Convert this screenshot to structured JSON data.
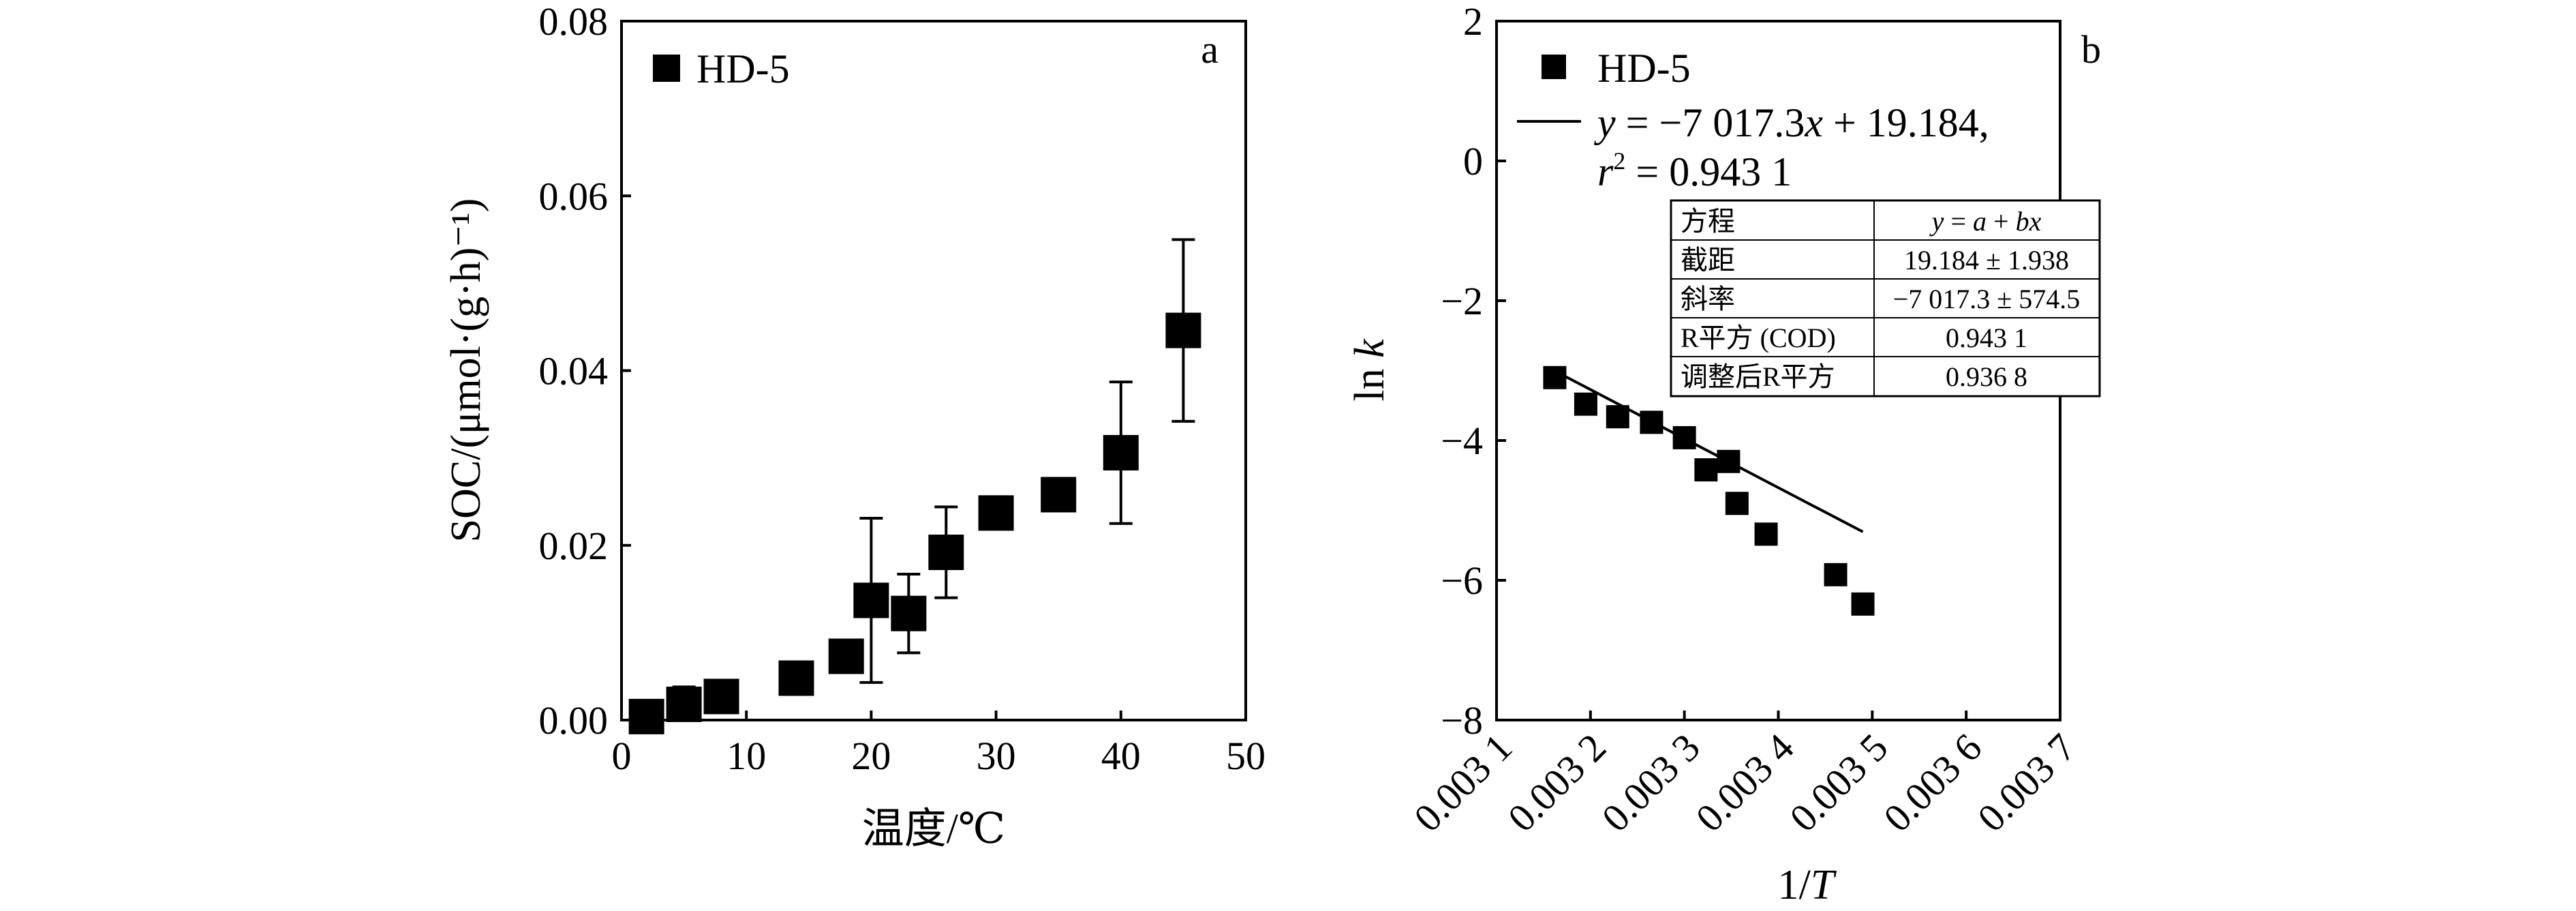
{
  "chart_data": [
    {
      "type": "scatter",
      "panel_label": "a",
      "xlabel": "温度/℃",
      "ylabel": "SOC/(μmol·(g·h)⁻¹)",
      "xlim": [
        0,
        50
      ],
      "ylim": [
        0,
        0.08
      ],
      "x_ticks": [
        0,
        10,
        20,
        30,
        40,
        50
      ],
      "x_tick_labels": [
        "0",
        "10",
        "20",
        "30",
        "40",
        "50"
      ],
      "y_ticks": [
        0,
        0.02,
        0.04,
        0.06,
        0.08
      ],
      "y_tick_labels": [
        "0.00",
        "0.02",
        "0.04",
        "0.06",
        "0.08"
      ],
      "grid": false,
      "legend_position": "top-left",
      "series": [
        {
          "name": "HD-5",
          "marker": "square",
          "color": "#000000",
          "points": [
            {
              "x": 2,
              "y": 0.0004,
              "err": 0
            },
            {
              "x": 5,
              "y": 0.0018,
              "err": 0.002
            },
            {
              "x": 8,
              "y": 0.0027,
              "err": 0
            },
            {
              "x": 14,
              "y": 0.0048,
              "err": 0
            },
            {
              "x": 18,
              "y": 0.0073,
              "err": 0
            },
            {
              "x": 20,
              "y": 0.0137,
              "err": 0.0094
            },
            {
              "x": 23,
              "y": 0.0122,
              "err": 0.0045
            },
            {
              "x": 26,
              "y": 0.0192,
              "err": 0.0052
            },
            {
              "x": 30,
              "y": 0.0237,
              "err": 0
            },
            {
              "x": 35,
              "y": 0.0258,
              "err": 0
            },
            {
              "x": 40,
              "y": 0.0306,
              "err": 0.0081
            },
            {
              "x": 45,
              "y": 0.0446,
              "err": 0.0104
            }
          ]
        }
      ]
    },
    {
      "type": "scatter",
      "panel_label": "b",
      "xlabel_prefix": "1/",
      "xlabel_var": "T",
      "ylabel_prefix": "ln ",
      "ylabel_var": "k",
      "xlim": [
        0.0031,
        0.0037
      ],
      "ylim": [
        -8,
        2
      ],
      "x_ticks": [
        0.0031,
        0.0032,
        0.0033,
        0.0034,
        0.0035,
        0.0036,
        0.0037
      ],
      "x_tick_labels": [
        "0.003 1",
        "0.003 2",
        "0.003 3",
        "0.003 4",
        "0.003 5",
        "0.003 6",
        "0.003 7"
      ],
      "y_ticks": [
        -8,
        -6,
        -4,
        -2,
        0,
        2
      ],
      "y_tick_labels": [
        "−8",
        "−6",
        "−4",
        "−2",
        "0",
        "2"
      ],
      "grid": false,
      "legend_position": "top-left",
      "series": [
        {
          "name": "HD-5",
          "marker": "square",
          "color": "#000000",
          "points": [
            {
              "x": 0.003162,
              "y": -3.1
            },
            {
              "x": 0.003195,
              "y": -3.48
            },
            {
              "x": 0.003229,
              "y": -3.66
            },
            {
              "x": 0.003265,
              "y": -3.74
            },
            {
              "x": 0.0033,
              "y": -3.96
            },
            {
              "x": 0.003323,
              "y": -4.42
            },
            {
              "x": 0.003347,
              "y": -4.3
            },
            {
              "x": 0.003356,
              "y": -4.9
            },
            {
              "x": 0.003387,
              "y": -5.34
            },
            {
              "x": 0.003461,
              "y": -5.92
            },
            {
              "x": 0.00349,
              "y": -6.34
            }
          ]
        }
      ],
      "fit_line": {
        "slope": -7017.3,
        "intercept": 19.184,
        "x_start": 0.003162,
        "x_end": 0.00349
      },
      "fit_legend": {
        "eq_y": "y",
        "eq_mid": " = −7 017.3",
        "eq_x": "x",
        "eq_end": " + 19.184,",
        "r_var": "r",
        "r_sup": "2",
        "r_val": " = 0.943 1"
      },
      "fit_table": {
        "rows": [
          {
            "label": "方程",
            "value_parts": [
              "y",
              " = ",
              "a",
              " + ",
              "bx"
            ],
            "value_italic": [
              true,
              false,
              true,
              false,
              true
            ]
          },
          {
            "label": "截距",
            "value": "19.184 ± 1.938"
          },
          {
            "label": "斜率",
            "value": "−7 017.3 ± 574.5"
          },
          {
            "label": "R平方 (COD)",
            "value": "0.943 1"
          },
          {
            "label": "调整后R平方",
            "value": "0.936 8"
          }
        ]
      }
    }
  ]
}
